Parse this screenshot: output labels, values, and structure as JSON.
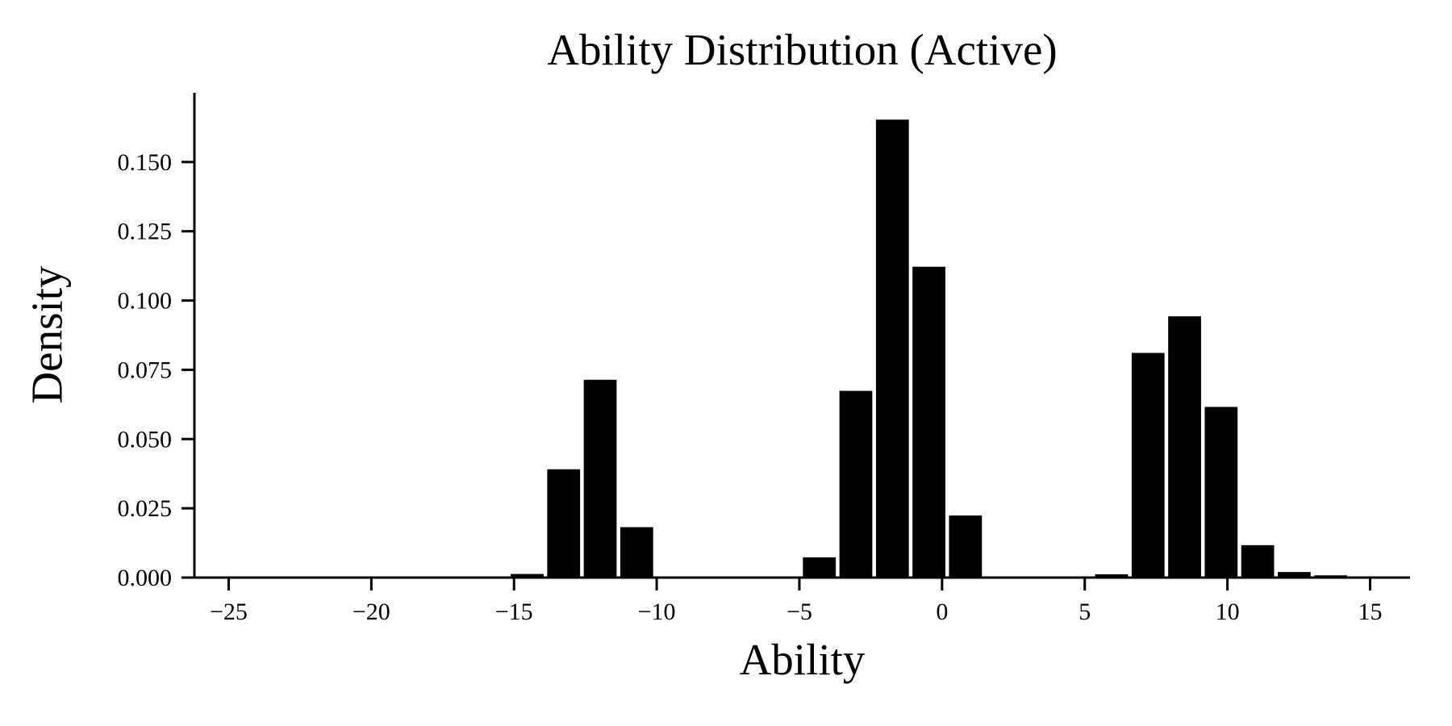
{
  "page": {
    "background_color": "#ffffff",
    "foreground_color": "#000000"
  },
  "chart_data": {
    "type": "bar",
    "subtype": "histogram",
    "title": "Ability Distribution (Active)",
    "xlabel": "Ability",
    "ylabel": "Density",
    "bar_color": "#000000",
    "bar_rel_width": 0.9,
    "grid": false,
    "legend": null,
    "xlim": [
      -26.2,
      16.4
    ],
    "ylim": [
      0,
      0.175
    ],
    "x_ticks": [
      -25,
      -20,
      -15,
      -10,
      -5,
      0,
      5,
      10,
      15
    ],
    "x_tick_labels": [
      "−25",
      "−20",
      "−15",
      "−10",
      "−5",
      "0",
      "5",
      "10",
      "15"
    ],
    "y_ticks": [
      0.0,
      0.025,
      0.05,
      0.075,
      0.1,
      0.125,
      0.15
    ],
    "y_tick_labels": [
      "0.000",
      "0.025",
      "0.050",
      "0.075",
      "0.100",
      "0.125",
      "0.150"
    ],
    "bin_edges": [
      -15.18,
      -13.9,
      -12.62,
      -11.34,
      -10.06,
      -8.78,
      -7.5,
      -6.22,
      -4.94,
      -3.66,
      -2.38,
      -1.1,
      0.18,
      1.46,
      2.74,
      4.02,
      5.3,
      6.58,
      7.86,
      9.14,
      10.42,
      11.7,
      12.98,
      14.26
    ],
    "values": [
      0.0013,
      0.0391,
      0.0714,
      0.0182,
      0,
      0,
      0,
      0,
      0.0073,
      0.0674,
      0.1653,
      0.1122,
      0.0224,
      0,
      0,
      0,
      0.0012,
      0.0811,
      0.0943,
      0.0616,
      0.0117,
      0.002,
      0.0008
    ]
  }
}
